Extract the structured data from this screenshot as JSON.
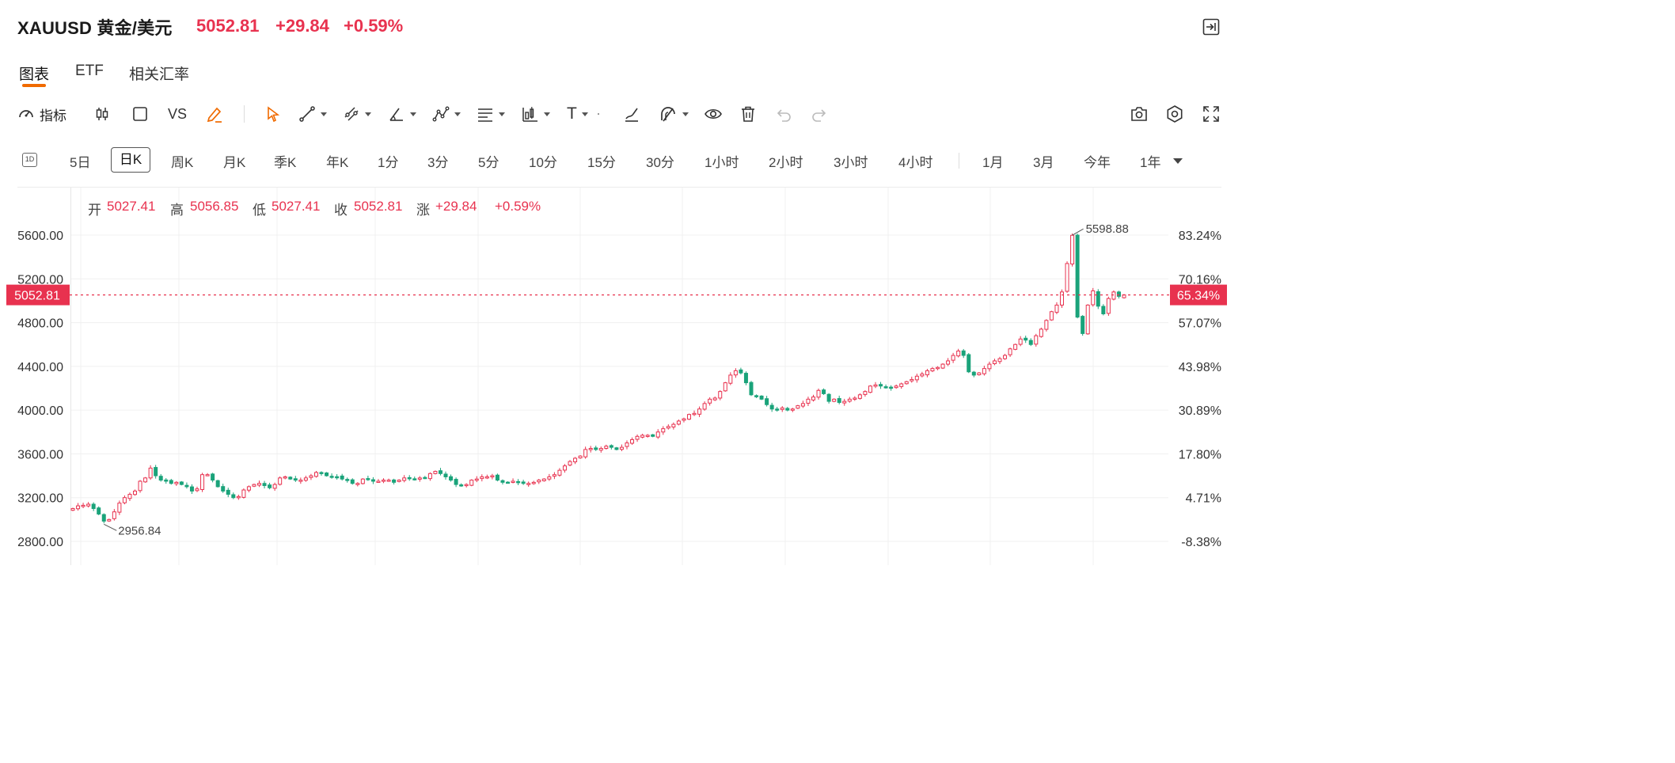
{
  "header": {
    "symbol": "XAUUSD 黄金/美元",
    "price": "5052.81",
    "change": "+29.84",
    "change_pct": "+0.59%"
  },
  "tabs": [
    "图表",
    "ETF",
    "相关汇率"
  ],
  "active_tab": "图表",
  "toolbar": {
    "indicator_label": "指标",
    "compare_label": "VS",
    "text_tool_label": "T",
    "icons": [
      "speedometer-icon",
      "candlestick-icon",
      "square-icon",
      "pencil-icon",
      "cursor-icon",
      "line-tool-icon",
      "multi-line-icon",
      "angle-tool-icon",
      "pattern-tool-icon",
      "fib-tool-icon",
      "bar-tool-icon",
      "text-tool-icon",
      "brush-icon",
      "magnet-icon",
      "eye-icon",
      "trash-icon",
      "undo-icon",
      "redo-icon",
      "camera-icon",
      "gear-icon",
      "fullscreen-icon"
    ]
  },
  "periods": {
    "icon_label": "1D",
    "items": [
      "5日",
      "日K",
      "周K",
      "月K",
      "季K",
      "年K",
      "1分",
      "3分",
      "5分",
      "10分",
      "15分",
      "30分",
      "1小时",
      "2小时",
      "3小时",
      "4小时",
      "1月",
      "3月",
      "今年",
      "1年"
    ],
    "active": "日K"
  },
  "ohlc": {
    "open_label": "开",
    "open": "5027.41",
    "high_label": "高",
    "high": "5056.85",
    "low_label": "低",
    "low": "5027.41",
    "close_label": "收",
    "close": "5052.81",
    "chg_label": "涨",
    "chg": "+29.84",
    "chg_pct": "+0.59%"
  },
  "colors": {
    "up": "#e8324f",
    "down": "#1aa37a",
    "accent": "#f06a00"
  },
  "chart_data": {
    "type": "candlestick",
    "y_axis_left": [
      "5600.00",
      "5200.00",
      "4800.00",
      "4400.00",
      "4000.00",
      "3600.00",
      "3200.00",
      "2800.00"
    ],
    "y_axis_right": [
      "83.24%",
      "70.16%",
      "57.07%",
      "43.98%",
      "30.89%",
      "17.80%",
      "4.71%",
      "-8.38%"
    ],
    "ylim": [
      2750,
      5720
    ],
    "current_price_label": "5052.81",
    "current_pct_label": "65.34%",
    "current_price": 5052.81,
    "max_label": "5598.88",
    "max_value": 5598.88,
    "min_label": "2956.84",
    "min_value": 2956.84,
    "grid": true,
    "series_close": [
      3100,
      3125,
      3130,
      3140,
      3100,
      3050,
      2985,
      3000,
      3070,
      3150,
      3200,
      3230,
      3260,
      3350,
      3380,
      3470,
      3400,
      3360,
      3350,
      3330,
      3340,
      3320,
      3300,
      3260,
      3280,
      3410,
      3410,
      3360,
      3300,
      3260,
      3230,
      3200,
      3210,
      3270,
      3300,
      3320,
      3330,
      3310,
      3290,
      3320,
      3380,
      3390,
      3370,
      3360,
      3360,
      3380,
      3400,
      3430,
      3420,
      3400,
      3390,
      3390,
      3370,
      3360,
      3330,
      3330,
      3370,
      3370,
      3350,
      3350,
      3360,
      3360,
      3340,
      3360,
      3380,
      3380,
      3370,
      3380,
      3380,
      3420,
      3440,
      3420,
      3390,
      3360,
      3320,
      3310,
      3320,
      3360,
      3370,
      3390,
      3390,
      3400,
      3360,
      3340,
      3340,
      3350,
      3340,
      3330,
      3330,
      3340,
      3360,
      3370,
      3390,
      3410,
      3450,
      3490,
      3530,
      3560,
      3580,
      3640,
      3650,
      3640,
      3650,
      3670,
      3660,
      3640,
      3660,
      3700,
      3730,
      3760,
      3770,
      3770,
      3760,
      3800,
      3830,
      3850,
      3870,
      3900,
      3920,
      3960,
      3970,
      4010,
      4060,
      4100,
      4110,
      4170,
      4250,
      4320,
      4360,
      4340,
      4250,
      4140,
      4130,
      4100,
      4050,
      4010,
      4000,
      4020,
      4000,
      4010,
      4040,
      4060,
      4100,
      4120,
      4180,
      4150,
      4080,
      4100,
      4070,
      4080,
      4100,
      4110,
      4140,
      4170,
      4220,
      4230,
      4220,
      4210,
      4200,
      4220,
      4240,
      4260,
      4280,
      4310,
      4330,
      4360,
      4380,
      4390,
      4420,
      4450,
      4500,
      4540,
      4500,
      4350,
      4320,
      4340,
      4380,
      4420,
      4450,
      4470,
      4500,
      4560,
      4600,
      4650,
      4640,
      4600,
      4680,
      4740,
      4820,
      4900,
      4960,
      5080,
      5340,
      5598,
      4850,
      4700,
      4960,
      5090,
      4950,
      4880,
      5020,
      5080,
      5040,
      5052.81
    ]
  }
}
